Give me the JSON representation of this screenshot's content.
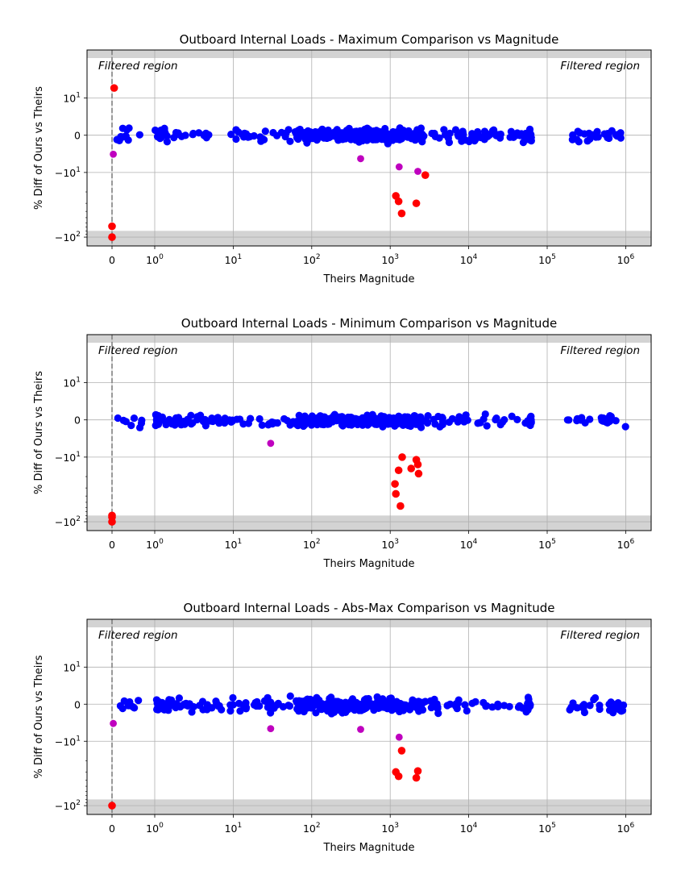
{
  "chart_data": [
    {
      "type": "scatter",
      "title": "Outboard Internal Loads - Maximum Comparison vs Magnitude",
      "xlabel": "Theirs Magnitude",
      "ylabel": "% Diff of Ours vs Theirs",
      "xscale": "symlog",
      "yscale": "symlog",
      "filtered_label": "Filtered region",
      "x_tick_labels": [
        "0",
        "10^0",
        "10^1",
        "10^2",
        "10^3",
        "10^4",
        "10^5",
        "10^6"
      ],
      "y_tick_labels": [
        "10^1",
        "0",
        "−10^1",
        "−10^2"
      ],
      "colors": {
        "ok": "#0000ff",
        "warn": "#bf00bf",
        "fail": "#ff0000",
        "filtered": "#d3d3d3"
      },
      "series": [
        {
          "name": "fail",
          "points": [
            [
              0.05,
              18
            ],
            [
              0,
              -68
            ],
            [
              0,
              -100
            ],
            [
              1180,
              -23
            ],
            [
              1280,
              -28
            ],
            [
              1400,
              -43
            ],
            [
              2150,
              -30
            ],
            [
              2800,
              -11
            ]
          ]
        },
        {
          "name": "warn",
          "points": [
            [
              0.03,
              -5.1
            ],
            [
              420,
              -6.3
            ],
            [
              1300,
              -8.5
            ],
            [
              2250,
              -9.7
            ]
          ]
        }
      ],
      "ok_y_range": [
        -4,
        4
      ]
    },
    {
      "type": "scatter",
      "title": "Outboard Internal Loads - Minimum Comparison vs Magnitude",
      "xlabel": "Theirs Magnitude",
      "ylabel": "% Diff of Ours vs Theirs",
      "xscale": "symlog",
      "yscale": "symlog",
      "filtered_label": "Filtered region",
      "x_tick_labels": [
        "0",
        "10^0",
        "10^1",
        "10^2",
        "10^3",
        "10^4",
        "10^5",
        "10^6"
      ],
      "y_tick_labels": [
        "10^1",
        "0",
        "−10^1",
        "−10^2"
      ],
      "colors": {
        "ok": "#0000ff",
        "warn": "#bf00bf",
        "fail": "#ff0000",
        "filtered": "#d3d3d3"
      },
      "series": [
        {
          "name": "fail",
          "points": [
            [
              0,
              -80
            ],
            [
              0,
              -85
            ],
            [
              0,
              -100
            ],
            [
              1150,
              -26
            ],
            [
              1180,
              -37
            ],
            [
              1280,
              -16
            ],
            [
              1350,
              -57
            ],
            [
              1420,
              -10
            ],
            [
              1850,
              -15
            ],
            [
              2150,
              -11
            ],
            [
              2250,
              -13
            ],
            [
              2300,
              -18
            ]
          ]
        },
        {
          "name": "warn",
          "points": [
            [
              30,
              -6.3
            ]
          ]
        }
      ],
      "ok_y_range": [
        -4,
        3
      ]
    },
    {
      "type": "scatter",
      "title": "Outboard Internal Loads - Abs-Max Comparison vs Magnitude",
      "xlabel": "Theirs Magnitude",
      "ylabel": "% Diff of Ours vs Theirs",
      "xscale": "symlog",
      "yscale": "symlog",
      "filtered_label": "Filtered region",
      "x_tick_labels": [
        "0",
        "10^0",
        "10^1",
        "10^2",
        "10^3",
        "10^4",
        "10^5",
        "10^6"
      ],
      "y_tick_labels": [
        "10^1",
        "0",
        "−10^1",
        "−10^2"
      ],
      "colors": {
        "ok": "#0000ff",
        "warn": "#bf00bf",
        "fail": "#ff0000",
        "filtered": "#d3d3d3"
      },
      "series": [
        {
          "name": "fail",
          "points": [
            [
              0,
              -100
            ],
            [
              1180,
              -30
            ],
            [
              1280,
              -35
            ],
            [
              1400,
              -14
            ],
            [
              2150,
              -37
            ],
            [
              2250,
              -29
            ]
          ]
        },
        {
          "name": "warn",
          "points": [
            [
              0.03,
              -5.2
            ],
            [
              30,
              -6.6
            ],
            [
              420,
              -6.8
            ],
            [
              1300,
              -8.9
            ]
          ]
        }
      ],
      "ok_y_range": [
        -5,
        4
      ]
    }
  ]
}
